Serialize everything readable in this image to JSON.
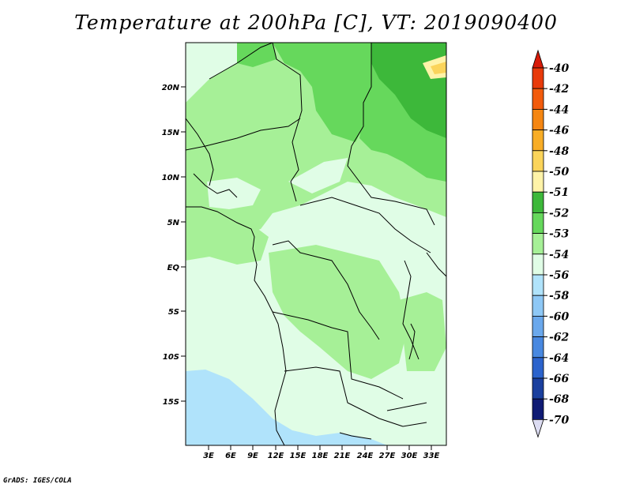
{
  "title": "Temperature at 200hPa [C], VT: 2019090400",
  "credit": "GrADS: IGES/COLA",
  "map": {
    "lat_labels": [
      "20N",
      "15N",
      "10N",
      "5N",
      "EQ",
      "5S",
      "10S",
      "15S"
    ],
    "lon_labels": [
      "3E",
      "6E",
      "9E",
      "12E",
      "15E",
      "18E",
      "21E",
      "24E",
      "27E",
      "30E",
      "33E"
    ]
  },
  "colorbar": {
    "labels": [
      "-40",
      "-42",
      "-44",
      "-46",
      "-48",
      "-50",
      "-51",
      "-52",
      "-53",
      "-54",
      "-56",
      "-58",
      "-60",
      "-62",
      "-64",
      "-66",
      "-68",
      "-70"
    ],
    "colors": [
      "#d71a08",
      "#e83a0a",
      "#f25b0c",
      "#f58612",
      "#f8ad26",
      "#fbd45a",
      "#fff3a8",
      "#3db83a",
      "#66d85c",
      "#a6f097",
      "#e0fde6",
      "#b0e3fb",
      "#8ec8f6",
      "#6aa8ec",
      "#4888e0",
      "#2b63cc",
      "#1a3f9e",
      "#0f1b74",
      "#08085a",
      "#dcdcf2"
    ]
  },
  "field_colors": {
    "m52": "#3db83a",
    "m53": "#66d85c",
    "m54": "#a6f097",
    "m56": "#e0fde6",
    "m58": "#b0e3fb",
    "m60": "#8ec8f6",
    "m51": "#fff3a8",
    "m50": "#fbd45a"
  }
}
